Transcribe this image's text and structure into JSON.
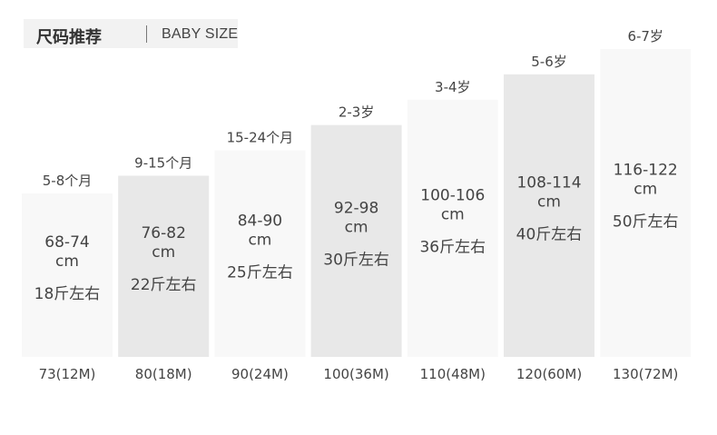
{
  "header": {
    "title": "尺码推荐",
    "subtitle": "BABY SIZE"
  },
  "chart_data": {
    "type": "bar",
    "categories": [
      "73(12M)",
      "80(18M)",
      "90(24M)",
      "100(36M)",
      "110(48M)",
      "120(60M)",
      "130(72M)"
    ],
    "values": [
      73,
      80,
      90,
      100,
      110,
      120,
      130
    ],
    "age_labels": [
      "5-8个月",
      "9-15个月",
      "15-24个月",
      "2-3岁",
      "3-4岁",
      "5-6岁",
      "6-7岁"
    ],
    "height_ranges": [
      "68-74",
      "76-82",
      "84-90",
      "92-98",
      "100-106",
      "108-114",
      "116-122"
    ],
    "height_unit": "cm",
    "weights": [
      "18斤左右",
      "22斤左右",
      "25斤左右",
      "30斤左右",
      "36斤左右",
      "40斤左右",
      "50斤左右"
    ],
    "colors": {
      "light": "#f8f8f8",
      "dark": "#e8e8e8",
      "text": "#444444"
    }
  }
}
